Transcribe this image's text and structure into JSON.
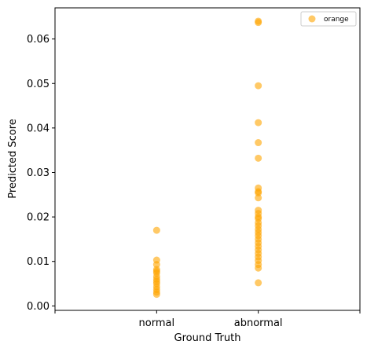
{
  "chart_data": {
    "type": "scatter",
    "title": "",
    "xlabel": "Ground Truth",
    "ylabel": "Predicted Score",
    "categories": [
      "normal",
      "abnormal"
    ],
    "ylim": [
      -0.001,
      0.067
    ],
    "yticks": [
      0.0,
      0.01,
      0.02,
      0.03,
      0.04,
      0.05,
      0.06
    ],
    "ytick_labels": [
      "0.00",
      "0.01",
      "0.02",
      "0.03",
      "0.04",
      "0.05",
      "0.06"
    ],
    "grid": false,
    "legend_position": "top-right",
    "series": [
      {
        "name": "orange",
        "color": "#FFA500",
        "alpha": 0.6,
        "points": [
          {
            "x": "normal",
            "y": 0.017
          },
          {
            "x": "normal",
            "y": 0.0103
          },
          {
            "x": "normal",
            "y": 0.0093
          },
          {
            "x": "normal",
            "y": 0.0082
          },
          {
            "x": "normal",
            "y": 0.0078
          },
          {
            "x": "normal",
            "y": 0.0074
          },
          {
            "x": "normal",
            "y": 0.0066
          },
          {
            "x": "normal",
            "y": 0.006
          },
          {
            "x": "normal",
            "y": 0.0055
          },
          {
            "x": "normal",
            "y": 0.005
          },
          {
            "x": "normal",
            "y": 0.0043
          },
          {
            "x": "normal",
            "y": 0.0037
          },
          {
            "x": "normal",
            "y": 0.0031
          },
          {
            "x": "normal",
            "y": 0.0026
          },
          {
            "x": "abnormal",
            "y": 0.064
          },
          {
            "x": "abnormal",
            "y": 0.0637
          },
          {
            "x": "abnormal",
            "y": 0.0495
          },
          {
            "x": "abnormal",
            "y": 0.0412
          },
          {
            "x": "abnormal",
            "y": 0.0367
          },
          {
            "x": "abnormal",
            "y": 0.0332
          },
          {
            "x": "abnormal",
            "y": 0.0265
          },
          {
            "x": "abnormal",
            "y": 0.0257
          },
          {
            "x": "abnormal",
            "y": 0.0254
          },
          {
            "x": "abnormal",
            "y": 0.0243
          },
          {
            "x": "abnormal",
            "y": 0.0215
          },
          {
            "x": "abnormal",
            "y": 0.0208
          },
          {
            "x": "abnormal",
            "y": 0.02
          },
          {
            "x": "abnormal",
            "y": 0.0196
          },
          {
            "x": "abnormal",
            "y": 0.0187
          },
          {
            "x": "abnormal",
            "y": 0.018
          },
          {
            "x": "abnormal",
            "y": 0.0172
          },
          {
            "x": "abnormal",
            "y": 0.0165
          },
          {
            "x": "abnormal",
            "y": 0.0158
          },
          {
            "x": "abnormal",
            "y": 0.015
          },
          {
            "x": "abnormal",
            "y": 0.0142
          },
          {
            "x": "abnormal",
            "y": 0.0134
          },
          {
            "x": "abnormal",
            "y": 0.0126
          },
          {
            "x": "abnormal",
            "y": 0.0118
          },
          {
            "x": "abnormal",
            "y": 0.011
          },
          {
            "x": "abnormal",
            "y": 0.0102
          },
          {
            "x": "abnormal",
            "y": 0.0093
          },
          {
            "x": "abnormal",
            "y": 0.0085
          },
          {
            "x": "abnormal",
            "y": 0.0052
          }
        ]
      }
    ]
  }
}
